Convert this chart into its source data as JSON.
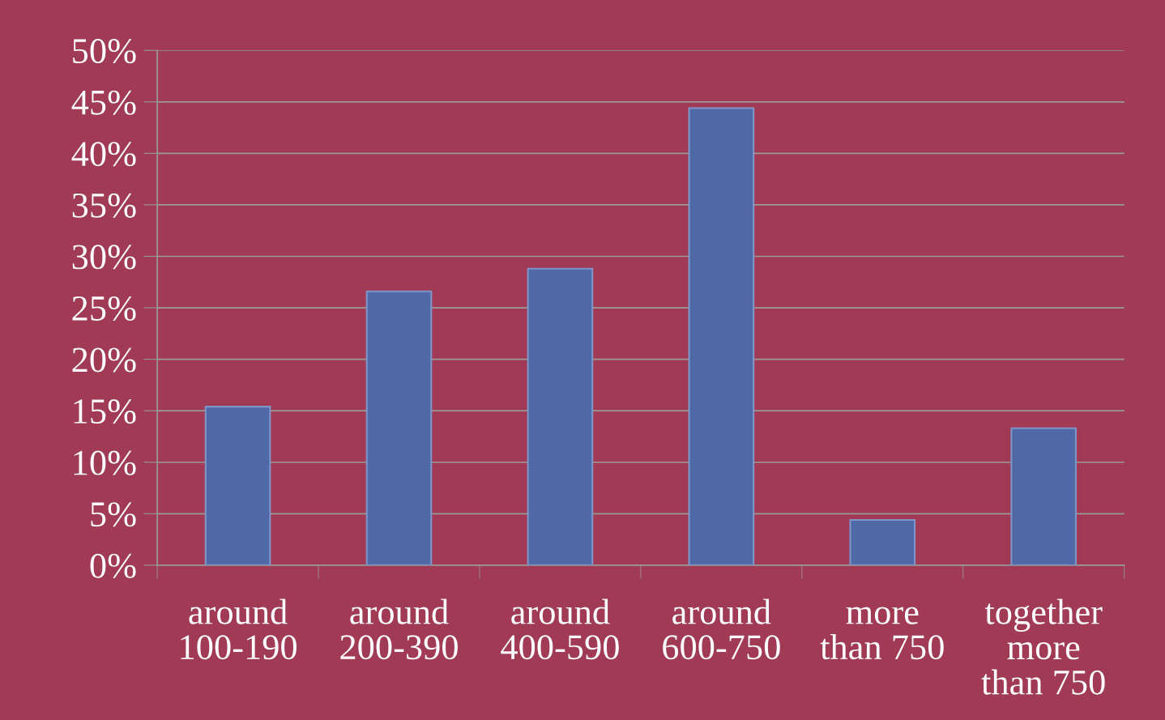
{
  "chart_data": {
    "type": "bar",
    "categories": [
      "around\n100-190",
      "around\n200-390",
      "around\n400-590",
      "around\n600-750",
      "more\nthan 750",
      "together\nmore\nthan 750"
    ],
    "values": [
      15.4,
      26.6,
      28.8,
      44.4,
      4.4,
      13.3
    ],
    "color": "#4f69a6",
    "ylim": [
      0,
      50
    ],
    "yticks": [
      {
        "value": 0,
        "label": "0%"
      },
      {
        "value": 5,
        "label": "5%"
      },
      {
        "value": 10,
        "label": "10%"
      },
      {
        "value": 15,
        "label": "15%"
      },
      {
        "value": 20,
        "label": "20%"
      },
      {
        "value": 25,
        "label": "25%"
      },
      {
        "value": 30,
        "label": "30%"
      },
      {
        "value": 35,
        "label": "35%"
      },
      {
        "value": 40,
        "label": "40%"
      },
      {
        "value": 45,
        "label": "45%"
      },
      {
        "value": 50,
        "label": "50%"
      }
    ],
    "grid": "y"
  }
}
